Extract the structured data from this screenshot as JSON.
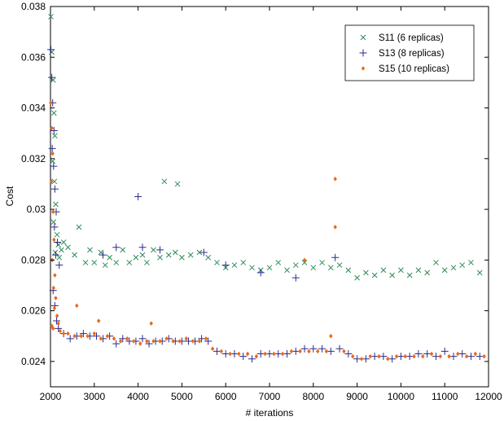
{
  "chart_data": {
    "type": "scatter",
    "xlabel": "# iterations",
    "ylabel": "Cost",
    "xlim": [
      2000,
      12000
    ],
    "ylim": [
      0.023,
      0.038
    ],
    "grid": false,
    "legend_position": "top-right",
    "x_ticks": [
      "2000",
      "3000",
      "4000",
      "5000",
      "6000",
      "7000",
      "8000",
      "9000",
      "10000",
      "11000",
      "12000"
    ],
    "y_ticks": [
      "0.024",
      "0.026",
      "0.028",
      "0.03",
      "0.032",
      "0.034",
      "0.036",
      "0.038"
    ],
    "series": [
      {
        "name": "S11 (6 replicas)",
        "marker": "x",
        "color": "#2e8b57",
        "points": [
          [
            2010,
            0.0376
          ],
          [
            2030,
            0.0362
          ],
          [
            2060,
            0.0351
          ],
          [
            2080,
            0.0338
          ],
          [
            2100,
            0.0329
          ],
          [
            2050,
            0.0319
          ],
          [
            2090,
            0.0311
          ],
          [
            2120,
            0.0302
          ],
          [
            2070,
            0.0295
          ],
          [
            2150,
            0.029
          ],
          [
            2180,
            0.0286
          ],
          [
            2110,
            0.0283
          ],
          [
            2200,
            0.0281
          ],
          [
            2250,
            0.0284
          ],
          [
            2300,
            0.0287
          ],
          [
            2400,
            0.0285
          ],
          [
            2550,
            0.0282
          ],
          [
            2650,
            0.0293
          ],
          [
            2800,
            0.0279
          ],
          [
            2900,
            0.0284
          ],
          [
            3000,
            0.0279
          ],
          [
            3150,
            0.0283
          ],
          [
            3250,
            0.0278
          ],
          [
            3350,
            0.0281
          ],
          [
            3500,
            0.0279
          ],
          [
            3650,
            0.0284
          ],
          [
            3800,
            0.0279
          ],
          [
            3950,
            0.0281
          ],
          [
            4100,
            0.0282
          ],
          [
            4200,
            0.0279
          ],
          [
            4350,
            0.0284
          ],
          [
            4600,
            0.0311
          ],
          [
            4900,
            0.031
          ],
          [
            4500,
            0.0281
          ],
          [
            4700,
            0.0282
          ],
          [
            4850,
            0.0283
          ],
          [
            5000,
            0.0281
          ],
          [
            5200,
            0.0282
          ],
          [
            5400,
            0.0283
          ],
          [
            5600,
            0.0281
          ],
          [
            5800,
            0.0279
          ],
          [
            6000,
            0.0277
          ],
          [
            6200,
            0.0278
          ],
          [
            6400,
            0.0279
          ],
          [
            6600,
            0.0277
          ],
          [
            6800,
            0.0276
          ],
          [
            7000,
            0.0277
          ],
          [
            7200,
            0.0279
          ],
          [
            7400,
            0.0276
          ],
          [
            7600,
            0.0278
          ],
          [
            7800,
            0.0279
          ],
          [
            8000,
            0.0277
          ],
          [
            8200,
            0.0279
          ],
          [
            8400,
            0.0277
          ],
          [
            8600,
            0.0278
          ],
          [
            8800,
            0.0276
          ],
          [
            9000,
            0.0273
          ],
          [
            9200,
            0.0275
          ],
          [
            9400,
            0.0274
          ],
          [
            9600,
            0.0276
          ],
          [
            9800,
            0.0274
          ],
          [
            10000,
            0.0276
          ],
          [
            10200,
            0.0274
          ],
          [
            10400,
            0.0276
          ],
          [
            10600,
            0.0275
          ],
          [
            10800,
            0.0279
          ],
          [
            11000,
            0.0276
          ],
          [
            11200,
            0.0277
          ],
          [
            11400,
            0.0278
          ],
          [
            11600,
            0.0279
          ],
          [
            11800,
            0.0275
          ]
        ]
      },
      {
        "name": "S13 (8 replicas)",
        "marker": "+",
        "color": "#2b2b8c",
        "points": [
          [
            2010,
            0.0363
          ],
          [
            2030,
            0.0352
          ],
          [
            2050,
            0.0342
          ],
          [
            2080,
            0.0331
          ],
          [
            2040,
            0.0324
          ],
          [
            2070,
            0.0317
          ],
          [
            2100,
            0.0308
          ],
          [
            2130,
            0.0299
          ],
          [
            2090,
            0.0293
          ],
          [
            2160,
            0.0287
          ],
          [
            2120,
            0.0282
          ],
          [
            2200,
            0.0278
          ],
          [
            2060,
            0.0268
          ],
          [
            2100,
            0.0262
          ],
          [
            2140,
            0.0256
          ],
          [
            2180,
            0.0253
          ],
          [
            2300,
            0.0251
          ],
          [
            2450,
            0.0249
          ],
          [
            2600,
            0.025
          ],
          [
            2750,
            0.0251
          ],
          [
            2900,
            0.025
          ],
          [
            3050,
            0.025
          ],
          [
            3200,
            0.0249
          ],
          [
            3350,
            0.025
          ],
          [
            3500,
            0.0247
          ],
          [
            3650,
            0.0249
          ],
          [
            3800,
            0.0248
          ],
          [
            3950,
            0.0248
          ],
          [
            4100,
            0.0249
          ],
          [
            4250,
            0.0247
          ],
          [
            4400,
            0.0248
          ],
          [
            4550,
            0.0248
          ],
          [
            4700,
            0.0249
          ],
          [
            4850,
            0.0248
          ],
          [
            5000,
            0.0248
          ],
          [
            5150,
            0.0248
          ],
          [
            5300,
            0.0248
          ],
          [
            5450,
            0.0249
          ],
          [
            5600,
            0.0248
          ],
          [
            5800,
            0.0244
          ],
          [
            6000,
            0.0243
          ],
          [
            6200,
            0.0243
          ],
          [
            6400,
            0.0242
          ],
          [
            6600,
            0.0241
          ],
          [
            6800,
            0.0243
          ],
          [
            7000,
            0.0243
          ],
          [
            7200,
            0.0243
          ],
          [
            7400,
            0.0243
          ],
          [
            7600,
            0.0244
          ],
          [
            7800,
            0.0245
          ],
          [
            8000,
            0.0245
          ],
          [
            8200,
            0.0245
          ],
          [
            8400,
            0.0244
          ],
          [
            8600,
            0.0245
          ],
          [
            8800,
            0.0243
          ],
          [
            9000,
            0.0241
          ],
          [
            9200,
            0.0241
          ],
          [
            9400,
            0.0242
          ],
          [
            9600,
            0.0242
          ],
          [
            9800,
            0.0241
          ],
          [
            10000,
            0.0242
          ],
          [
            10200,
            0.0242
          ],
          [
            10400,
            0.0243
          ],
          [
            10600,
            0.0243
          ],
          [
            10800,
            0.0242
          ],
          [
            11000,
            0.0244
          ],
          [
            11200,
            0.0242
          ],
          [
            11400,
            0.0243
          ],
          [
            11600,
            0.0242
          ],
          [
            11800,
            0.0242
          ],
          [
            4000,
            0.0305
          ],
          [
            3500,
            0.0285
          ],
          [
            4100,
            0.0285
          ],
          [
            5500,
            0.0283
          ],
          [
            6000,
            0.0278
          ],
          [
            8500,
            0.0281
          ],
          [
            3200,
            0.0282
          ],
          [
            4500,
            0.0284
          ],
          [
            6800,
            0.0275
          ],
          [
            7600,
            0.0273
          ]
        ]
      },
      {
        "name": "S15 (10 replicas)",
        "marker": "diamond",
        "color": "#e8671a",
        "points": [
          [
            2010,
            0.0342
          ],
          [
            2030,
            0.0332
          ],
          [
            2050,
            0.0322
          ],
          [
            2020,
            0.0311
          ],
          [
            2060,
            0.0299
          ],
          [
            2080,
            0.0288
          ],
          [
            2040,
            0.028
          ],
          [
            2100,
            0.0274
          ],
          [
            2070,
            0.0269
          ],
          [
            2120,
            0.0265
          ],
          [
            2090,
            0.0261
          ],
          [
            2150,
            0.0258
          ],
          [
            2180,
            0.0255
          ],
          [
            2030,
            0.0254
          ],
          [
            2060,
            0.0253
          ],
          [
            2220,
            0.0252
          ],
          [
            2300,
            0.0251
          ],
          [
            2400,
            0.0251
          ],
          [
            2550,
            0.025
          ],
          [
            2700,
            0.025
          ],
          [
            2850,
            0.025
          ],
          [
            3000,
            0.0251
          ],
          [
            3150,
            0.0249
          ],
          [
            3300,
            0.025
          ],
          [
            3450,
            0.0249
          ],
          [
            3600,
            0.0248
          ],
          [
            3750,
            0.0249
          ],
          [
            3900,
            0.0248
          ],
          [
            4050,
            0.0247
          ],
          [
            4200,
            0.0248
          ],
          [
            4350,
            0.0248
          ],
          [
            4500,
            0.0248
          ],
          [
            4650,
            0.0249
          ],
          [
            4800,
            0.0248
          ],
          [
            4950,
            0.0248
          ],
          [
            5100,
            0.0249
          ],
          [
            5250,
            0.0248
          ],
          [
            5400,
            0.0248
          ],
          [
            5550,
            0.0249
          ],
          [
            5700,
            0.0245
          ],
          [
            5900,
            0.0244
          ],
          [
            6100,
            0.0243
          ],
          [
            6300,
            0.0243
          ],
          [
            6500,
            0.0243
          ],
          [
            6700,
            0.0242
          ],
          [
            6900,
            0.0243
          ],
          [
            7100,
            0.0243
          ],
          [
            7300,
            0.0243
          ],
          [
            7500,
            0.0244
          ],
          [
            7700,
            0.0244
          ],
          [
            7900,
            0.0244
          ],
          [
            8100,
            0.0244
          ],
          [
            8300,
            0.0244
          ],
          [
            8500,
            0.0312
          ],
          [
            8500,
            0.0293
          ],
          [
            8700,
            0.0244
          ],
          [
            8900,
            0.0242
          ],
          [
            9100,
            0.0241
          ],
          [
            9300,
            0.0242
          ],
          [
            9500,
            0.0242
          ],
          [
            9700,
            0.0241
          ],
          [
            9900,
            0.0242
          ],
          [
            10100,
            0.0242
          ],
          [
            10300,
            0.0242
          ],
          [
            10500,
            0.0242
          ],
          [
            10700,
            0.0243
          ],
          [
            10900,
            0.0242
          ],
          [
            11100,
            0.0242
          ],
          [
            11300,
            0.0243
          ],
          [
            11500,
            0.0242
          ],
          [
            11700,
            0.0243
          ],
          [
            11900,
            0.0242
          ],
          [
            2600,
            0.0262
          ],
          [
            3100,
            0.0256
          ],
          [
            4300,
            0.0255
          ],
          [
            7800,
            0.028
          ],
          [
            8400,
            0.025
          ]
        ]
      }
    ]
  }
}
